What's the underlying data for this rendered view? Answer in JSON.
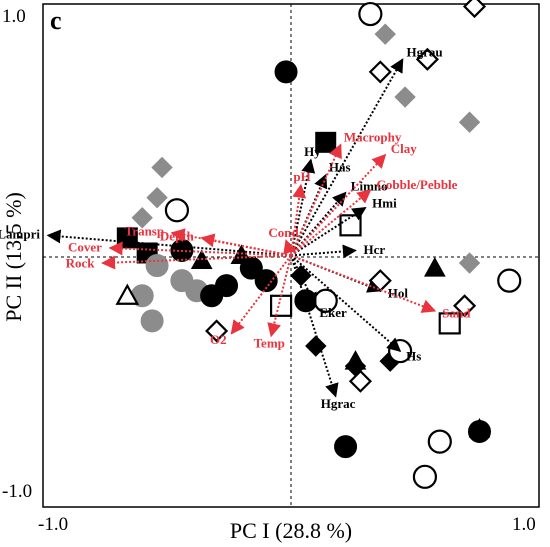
{
  "chart_data": {
    "type": "scatter",
    "panel_label": "c",
    "xlabel": "PC I (28.8 %)",
    "ylabel": "PC II (13.5 %)",
    "xlim": [
      -1.0,
      1.0
    ],
    "ylim": [
      -1.0,
      1.0
    ],
    "x_tick_labels": [
      "-1.0",
      "1.0"
    ],
    "y_tick_labels": [
      "1.0",
      "-1.0"
    ],
    "grid": false,
    "reference_lines": "dashed lines at x=0 and y=0",
    "colors": {
      "species_arrows": "#000000",
      "environment_arrows": "#e8343f"
    },
    "species_vectors": [
      {
        "label": "Lampri",
        "x": -0.98,
        "y": 0.08
      },
      {
        "label": "Hgrau",
        "x": 0.45,
        "y": 0.78
      },
      {
        "label": "Hy",
        "x": 0.08,
        "y": 0.38
      },
      {
        "label": "Has",
        "x": 0.14,
        "y": 0.32
      },
      {
        "label": "Limno",
        "x": 0.22,
        "y": 0.25
      },
      {
        "label": "Hmi",
        "x": 0.3,
        "y": 0.19
      },
      {
        "label": "Hcr",
        "x": 0.26,
        "y": 0.02
      },
      {
        "label": "Hol",
        "x": 0.36,
        "y": -0.14
      },
      {
        "label": "Eker",
        "x": 0.1,
        "y": -0.2
      },
      {
        "label": "Hs",
        "x": 0.44,
        "y": -0.38
      },
      {
        "label": "Hgrac",
        "x": 0.18,
        "y": -0.56
      }
    ],
    "environment_vectors": [
      {
        "label": "Macrophy",
        "x": 0.2,
        "y": 0.44
      },
      {
        "label": "Clay",
        "x": 0.38,
        "y": 0.4
      },
      {
        "label": "pH",
        "x": 0.04,
        "y": 0.28
      },
      {
        "label": "Cobble/Pebble",
        "x": 0.32,
        "y": 0.26
      },
      {
        "label": "Cond",
        "x": -0.02,
        "y": 0.06
      },
      {
        "label": "Depth",
        "x": -0.36,
        "y": 0.07
      },
      {
        "label": "Transp",
        "x": -0.48,
        "y": 0.09
      },
      {
        "label": "Cover",
        "x": -0.73,
        "y": 0.03
      },
      {
        "label": "Rock",
        "x": -0.76,
        "y": -0.03
      },
      {
        "label": "Sand",
        "x": 0.58,
        "y": -0.22
      },
      {
        "label": "Temp",
        "x": -0.08,
        "y": -0.32
      },
      {
        "label": "O2",
        "x": -0.24,
        "y": -0.31
      }
    ],
    "site_markers": [
      {
        "shape": "circle",
        "fill": "open",
        "x": 0.32,
        "y": 0.96
      },
      {
        "shape": "diamond",
        "fill": "open",
        "x": 0.74,
        "y": 0.99
      },
      {
        "shape": "diamond",
        "fill": "grey",
        "x": 0.38,
        "y": 0.88
      },
      {
        "shape": "diamond",
        "fill": "open",
        "x": 0.36,
        "y": 0.73
      },
      {
        "shape": "diamond",
        "fill": "open",
        "x": 0.55,
        "y": 0.78
      },
      {
        "shape": "diamond",
        "fill": "grey",
        "x": 0.46,
        "y": 0.63
      },
      {
        "shape": "diamond",
        "fill": "grey",
        "x": 0.72,
        "y": 0.53
      },
      {
        "shape": "circle",
        "fill": "black",
        "x": -0.02,
        "y": 0.73
      },
      {
        "shape": "square",
        "fill": "black",
        "x": 0.14,
        "y": 0.45
      },
      {
        "shape": "square",
        "fill": "open",
        "x": 0.24,
        "y": 0.12
      },
      {
        "shape": "diamond",
        "fill": "grey",
        "x": -0.52,
        "y": 0.35
      },
      {
        "shape": "diamond",
        "fill": "grey",
        "x": -0.54,
        "y": 0.23
      },
      {
        "shape": "diamond",
        "fill": "grey",
        "x": -0.6,
        "y": 0.15
      },
      {
        "shape": "circle",
        "fill": "open",
        "x": -0.46,
        "y": 0.18
      },
      {
        "shape": "square",
        "fill": "black",
        "x": -0.66,
        "y": 0.07
      },
      {
        "shape": "square",
        "fill": "black",
        "x": -0.58,
        "y": 0.01
      },
      {
        "shape": "circle",
        "fill": "black",
        "x": -0.44,
        "y": 0.02
      },
      {
        "shape": "circle",
        "fill": "grey",
        "x": -0.54,
        "y": -0.04
      },
      {
        "shape": "circle",
        "fill": "grey",
        "x": -0.44,
        "y": -0.1
      },
      {
        "shape": "circle",
        "fill": "grey",
        "x": -0.38,
        "y": -0.14
      },
      {
        "shape": "circle",
        "fill": "grey",
        "x": -0.56,
        "y": -0.26
      },
      {
        "shape": "circle",
        "fill": "grey",
        "x": -0.6,
        "y": -0.16
      },
      {
        "shape": "triangle",
        "fill": "open",
        "x": -0.66,
        "y": -0.16
      },
      {
        "shape": "triangle",
        "fill": "black",
        "x": -0.2,
        "y": 0.0
      },
      {
        "shape": "triangle",
        "fill": "black",
        "x": -0.36,
        "y": -0.02
      },
      {
        "shape": "circle",
        "fill": "black",
        "x": -0.16,
        "y": -0.05
      },
      {
        "shape": "circle",
        "fill": "black",
        "x": -0.26,
        "y": -0.12
      },
      {
        "shape": "circle",
        "fill": "black",
        "x": -0.32,
        "y": -0.16
      },
      {
        "shape": "circle",
        "fill": "black",
        "x": -0.1,
        "y": -0.1
      },
      {
        "shape": "circle",
        "fill": "black",
        "x": 0.06,
        "y": -0.18
      },
      {
        "shape": "square",
        "fill": "open",
        "x": -0.04,
        "y": -0.2
      },
      {
        "shape": "diamond",
        "fill": "black",
        "x": 0.04,
        "y": -0.08
      },
      {
        "shape": "circle",
        "fill": "open",
        "x": 0.14,
        "y": -0.18
      },
      {
        "shape": "diamond",
        "fill": "open",
        "x": -0.3,
        "y": -0.3
      },
      {
        "shape": "diamond",
        "fill": "black",
        "x": 0.1,
        "y": -0.36
      },
      {
        "shape": "diamond",
        "fill": "black",
        "x": 0.26,
        "y": -0.44
      },
      {
        "shape": "triangle",
        "fill": "black",
        "x": 0.26,
        "y": -0.42
      },
      {
        "shape": "diamond",
        "fill": "open",
        "x": 0.28,
        "y": -0.5
      },
      {
        "shape": "diamond",
        "fill": "black",
        "x": 0.4,
        "y": -0.42
      },
      {
        "shape": "circle",
        "fill": "open",
        "x": 0.44,
        "y": -0.38
      },
      {
        "shape": "diamond",
        "fill": "open",
        "x": 0.36,
        "y": -0.1
      },
      {
        "shape": "triangle",
        "fill": "black",
        "x": 0.58,
        "y": -0.05
      },
      {
        "shape": "diamond",
        "fill": "grey",
        "x": 0.72,
        "y": -0.03
      },
      {
        "shape": "circle",
        "fill": "open",
        "x": 0.88,
        "y": -0.1
      },
      {
        "shape": "diamond",
        "fill": "open",
        "x": 0.7,
        "y": -0.2
      },
      {
        "shape": "square",
        "fill": "open",
        "x": 0.64,
        "y": -0.27
      },
      {
        "shape": "circle",
        "fill": "black",
        "x": 0.22,
        "y": -0.76
      },
      {
        "shape": "circle",
        "fill": "open",
        "x": 0.6,
        "y": -0.74
      },
      {
        "shape": "circle",
        "fill": "open",
        "x": 0.54,
        "y": -0.88
      },
      {
        "shape": "circle",
        "fill": "black",
        "x": 0.76,
        "y": -0.7
      },
      {
        "shape": "triangle",
        "fill": "black",
        "x": 0.76,
        "y": -0.69
      }
    ]
  }
}
